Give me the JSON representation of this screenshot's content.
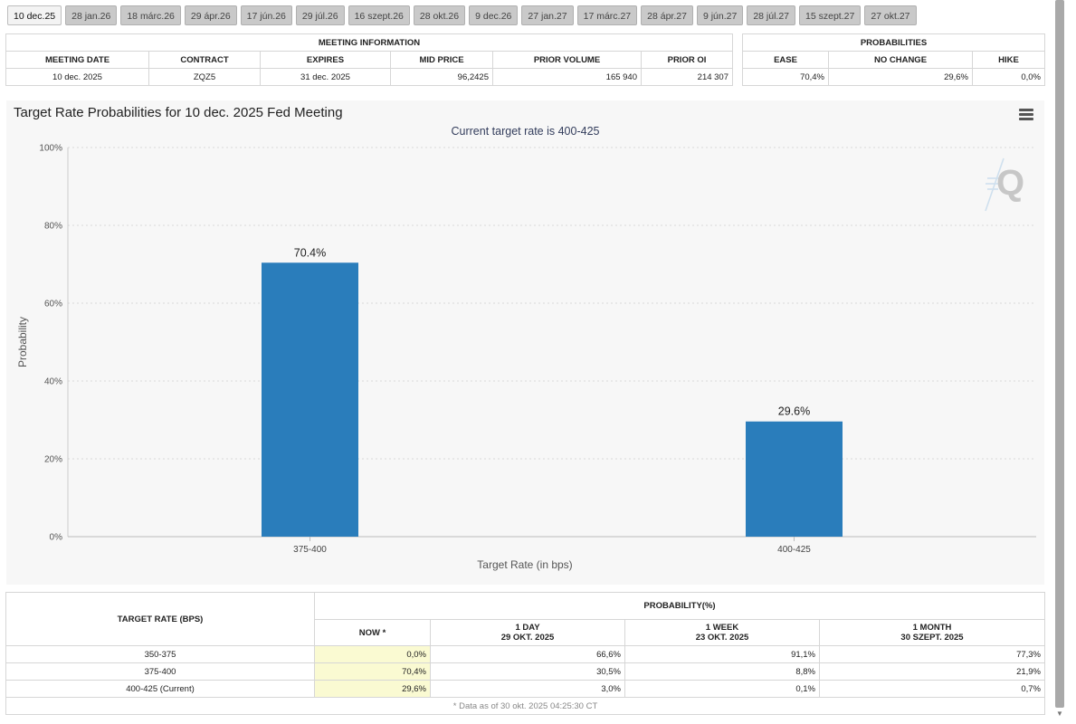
{
  "tabs": [
    "10 dec.25",
    "28 jan.26",
    "18 márc.26",
    "29 ápr.26",
    "17 jún.26",
    "29 júl.26",
    "16 szept.26",
    "28 okt.26",
    "9 dec.26",
    "27 jan.27",
    "17 márc.27",
    "28 ápr.27",
    "9 jún.27",
    "28 júl.27",
    "15 szept.27",
    "27 okt.27"
  ],
  "active_tab": 0,
  "meeting_info": {
    "title": "MEETING INFORMATION",
    "headers": [
      "MEETING DATE",
      "CONTRACT",
      "EXPIRES",
      "MID PRICE",
      "PRIOR VOLUME",
      "PRIOR OI"
    ],
    "row": [
      "10 dec. 2025",
      "ZQZ5",
      "31 dec. 2025",
      "96,2425",
      "165 940",
      "214 307"
    ]
  },
  "probabilities": {
    "title": "PROBABILITIES",
    "headers": [
      "EASE",
      "NO CHANGE",
      "HIKE"
    ],
    "row": [
      "70,4%",
      "29,6%",
      "0,0%"
    ]
  },
  "chart_data": {
    "type": "bar",
    "title": "Target Rate Probabilities for 10 dec. 2025 Fed Meeting",
    "subtitle": "Current target rate is 400-425",
    "categories": [
      "375-400",
      "400-425"
    ],
    "values": [
      70.4,
      29.6
    ],
    "data_labels": [
      "70.4%",
      "29.6%"
    ],
    "xlabel": "Target Rate (in bps)",
    "ylabel": "Probability",
    "ylim": [
      0,
      100
    ],
    "yticks": [
      0,
      20,
      40,
      60,
      80,
      100
    ],
    "ytick_labels": [
      "0%",
      "20%",
      "40%",
      "60%",
      "80%",
      "100%"
    ],
    "grid": true,
    "bar_color": "#2a7dbb"
  },
  "target_table": {
    "rate_header": "TARGET RATE (BPS)",
    "prob_header": "PROBABILITY(%)",
    "now_header": "NOW *",
    "cols": [
      {
        "line1": "1 DAY",
        "line2": "29 OKT. 2025"
      },
      {
        "line1": "1 WEEK",
        "line2": "23 OKT. 2025"
      },
      {
        "line1": "1 MONTH",
        "line2": "30 SZEPT. 2025"
      }
    ],
    "rows": [
      {
        "rate": "350-375",
        "now": "0,0%",
        "vals": [
          "66,6%",
          "91,1%",
          "77,3%"
        ]
      },
      {
        "rate": "375-400",
        "now": "70,4%",
        "vals": [
          "30,5%",
          "8,8%",
          "21,9%"
        ]
      },
      {
        "rate": "400-425 (Current)",
        "now": "29,6%",
        "vals": [
          "3,0%",
          "0,1%",
          "0,7%"
        ]
      }
    ],
    "footnote": "* Data as of 30 okt. 2025 04:25:30 CT"
  }
}
